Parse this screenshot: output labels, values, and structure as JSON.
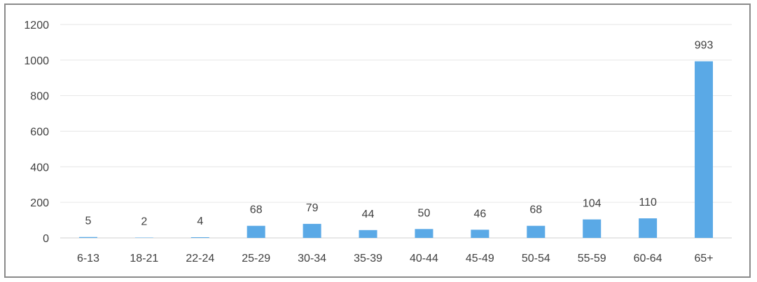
{
  "chart_data": {
    "type": "bar",
    "title": "",
    "xlabel": "",
    "ylabel": "",
    "categories": [
      "6-13",
      "18-21",
      "22-24",
      "25-29",
      "30-34",
      "35-39",
      "40-44",
      "45-49",
      "50-54",
      "55-59",
      "60-64",
      "65+"
    ],
    "values": [
      5,
      2,
      4,
      68,
      79,
      44,
      50,
      46,
      68,
      104,
      110,
      993
    ],
    "data_labels": [
      "5",
      "2",
      "4",
      "68",
      "79",
      "44",
      "50",
      "46",
      "68",
      "104",
      "110",
      "993"
    ],
    "ylim": [
      0,
      1200
    ],
    "yticks": [
      0,
      200,
      400,
      600,
      800,
      1000,
      1200
    ],
    "ytick_labels": [
      "0",
      "200",
      "400",
      "600",
      "800",
      "1000",
      "1200"
    ],
    "grid": true,
    "legend": "none",
    "bar_color": "#5aa9e6",
    "grid_color": "#e6e6e6"
  }
}
